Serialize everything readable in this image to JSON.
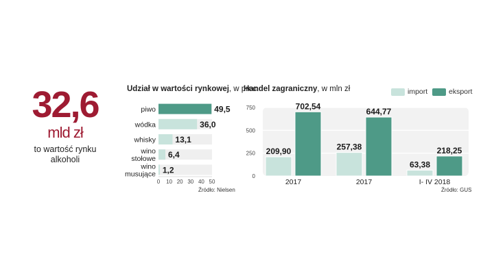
{
  "kpi": {
    "value": "32,6",
    "unit": "mld zł",
    "desc_line1": "to wartość rynku",
    "desc_line2": "alkoholi"
  },
  "chart1": {
    "title_bold": "Udział w wartości rynkowej",
    "title_rest": ", w proc.",
    "source": "Źródło: Nielsen",
    "colors": {
      "highlight": "#4e9a87",
      "normal": "#c8e3dc"
    }
  },
  "chart2": {
    "title_bold": "Handel zagraniczny",
    "title_rest": ", w mln zł",
    "source": "Źródło: GUS",
    "colors": {
      "import": "#c8e3dc",
      "eksport": "#4e9a87"
    }
  },
  "chart_data": [
    {
      "type": "bar",
      "orientation": "horizontal",
      "title": "Udział w wartości rynkowej, w proc.",
      "categories": [
        [
          "piwo"
        ],
        [
          "wódka"
        ],
        [
          "whisky"
        ],
        [
          "wino",
          "stołowe"
        ],
        [
          "wino",
          "musujące"
        ]
      ],
      "values": [
        49.5,
        36.0,
        13.1,
        6.4,
        1.2
      ],
      "value_labels": [
        "49,5",
        "36,0",
        "13,1",
        "6,4",
        "1,2"
      ],
      "highlight_index": 0,
      "xlim": [
        0,
        50
      ],
      "xticks": [
        0,
        10,
        20,
        30,
        40,
        50
      ],
      "grid": false,
      "legend": "none"
    },
    {
      "type": "bar",
      "title": "Handel zagraniczny, w mln zł",
      "categories": [
        "2017",
        "2017",
        "I- IV 2018"
      ],
      "series": [
        {
          "name": "import",
          "values": [
            209.9,
            257.38,
            63.38
          ],
          "labels": [
            "209,90",
            "257,38",
            "63,38"
          ]
        },
        {
          "name": "eksport",
          "values": [
            702.54,
            644.77,
            218.25
          ],
          "labels": [
            "702,54",
            "644,77",
            "218,25"
          ]
        }
      ],
      "ylim": [
        0,
        750
      ],
      "yticks": [
        0,
        250,
        500,
        750
      ],
      "grid": true,
      "legend": "top-right"
    }
  ]
}
